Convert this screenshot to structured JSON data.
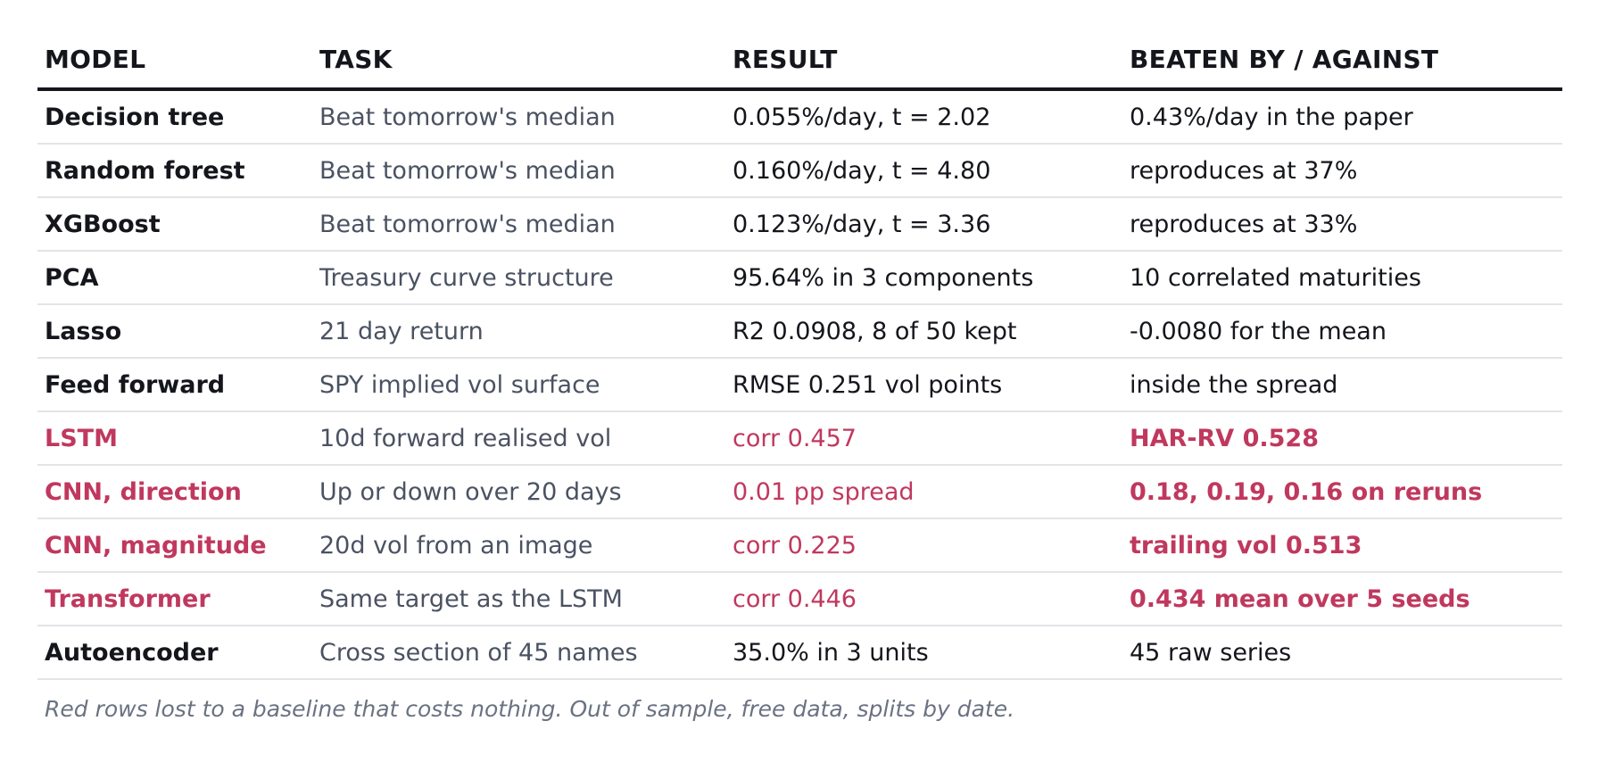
{
  "table": {
    "headers": [
      "MODEL",
      "TASK",
      "RESULT",
      "BEATEN BY / AGAINST"
    ],
    "rows": [
      {
        "model": "Decision tree",
        "task": "Beat tomorrow's median",
        "result": "0.055%/day, t = 2.02",
        "against": "0.43%/day in the paper",
        "lost": false
      },
      {
        "model": "Random forest",
        "task": "Beat tomorrow's median",
        "result": "0.160%/day, t = 4.80",
        "against": "reproduces at 37%",
        "lost": false
      },
      {
        "model": "XGBoost",
        "task": "Beat tomorrow's median",
        "result": "0.123%/day, t = 3.36",
        "against": "reproduces at 33%",
        "lost": false
      },
      {
        "model": "PCA",
        "task": "Treasury curve structure",
        "result": "95.64% in 3 components",
        "against": "10 correlated maturities",
        "lost": false
      },
      {
        "model": "Lasso",
        "task": "21 day return",
        "result": "R2 0.0908, 8 of 50 kept",
        "against": "-0.0080 for the mean",
        "lost": false
      },
      {
        "model": "Feed forward",
        "task": "SPY implied vol surface",
        "result": "RMSE 0.251 vol points",
        "against": "inside the spread",
        "lost": false
      },
      {
        "model": "LSTM",
        "task": "10d forward realised vol",
        "result": "corr 0.457",
        "against": "HAR-RV 0.528",
        "lost": true
      },
      {
        "model": "CNN, direction",
        "task": "Up or down over 20 days",
        "result": "0.01 pp spread",
        "against": "0.18, 0.19, 0.16 on reruns",
        "lost": true
      },
      {
        "model": "CNN, magnitude",
        "task": "20d vol from an image",
        "result": "corr 0.225",
        "against": "trailing vol 0.513",
        "lost": true
      },
      {
        "model": "Transformer",
        "task": "Same target as the LSTM",
        "result": "corr 0.446",
        "against": "0.434 mean over 5 seeds",
        "lost": true
      },
      {
        "model": "Autoencoder",
        "task": "Cross section of 45 names",
        "result": "35.0% in 3 units",
        "against": "45 raw series",
        "lost": false
      }
    ]
  },
  "note": "Red rows lost to a baseline that costs nothing. Out of sample, free data, splits by date.",
  "colors": {
    "text": "#14161c",
    "task_text": "#4a5262",
    "lost_accent": "#c0385e",
    "row_divider": "#e2e4e8",
    "note_text": "#6a7282"
  }
}
